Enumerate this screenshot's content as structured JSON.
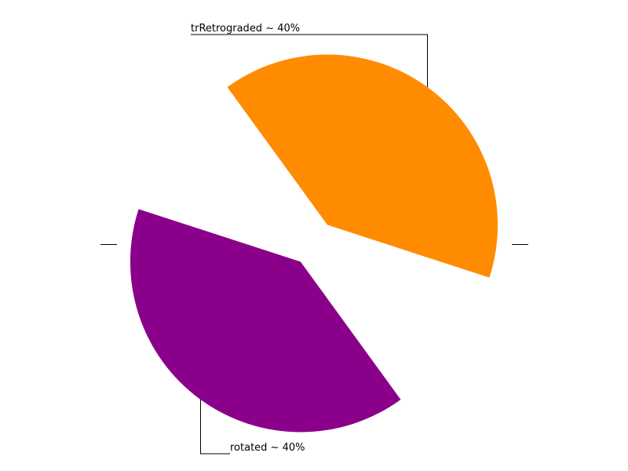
{
  "chart_data": {
    "type": "pie",
    "slices": [
      {
        "label": "trRetrograded ~ 40%",
        "value": 40,
        "color": "#ff8c00"
      },
      {
        "label": "",
        "value": 10,
        "color": "#ffffff"
      },
      {
        "label": "rotated ~ 40%",
        "value": 40,
        "color": "#8b008b"
      },
      {
        "label": "",
        "value": 10,
        "color": "#ffffff"
      }
    ],
    "legend": "none",
    "grid": false
  }
}
